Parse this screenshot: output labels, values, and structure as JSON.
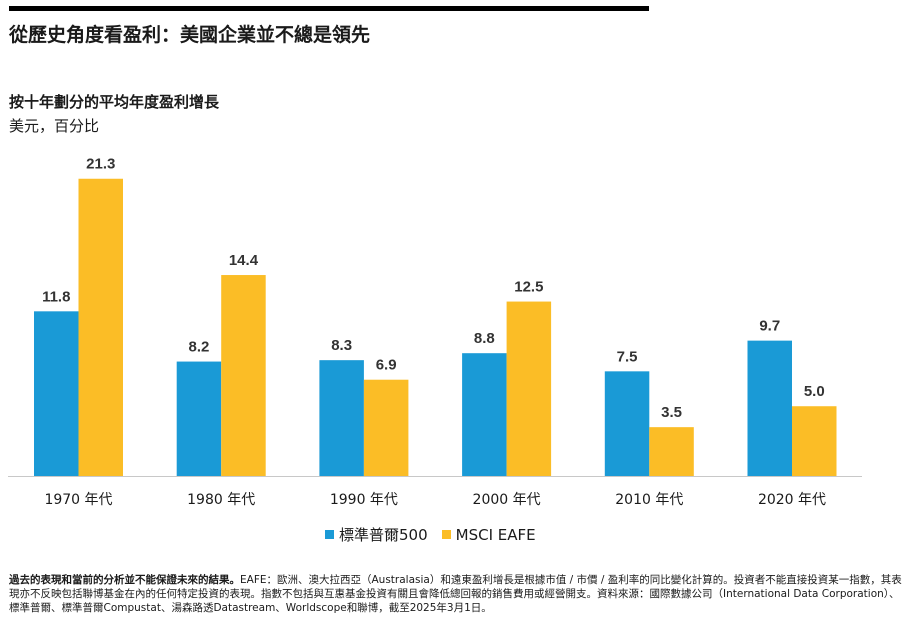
{
  "title": "從歷史角度看盈利：美國企業並不總是領先",
  "chart_data": {
    "type": "bar",
    "title": "按十年劃分的平均年度盈利增長",
    "subtitle": "美元，百分比",
    "categories": [
      "1970 年代",
      "1980 年代",
      "1990 年代",
      "2000 年代",
      "2010 年代",
      "2020 年代"
    ],
    "series": [
      {
        "name": "標準普爾500",
        "values": [
          11.8,
          8.2,
          8.3,
          8.8,
          7.5,
          9.7
        ],
        "color": "#1a9ad6"
      },
      {
        "name": "MSCI EAFE",
        "values": [
          21.3,
          14.4,
          6.9,
          12.5,
          3.5,
          5.0
        ],
        "color": "#fbbd26"
      }
    ],
    "ylim": [
      0,
      22.5
    ],
    "grid": false,
    "legend_position": "bottom"
  },
  "footnote": {
    "bold": "過去的表現和當前的分析並不能保證未來的結果。",
    "text": "EAFE：歐洲、澳大拉西亞（Australasia）和遠東盈利增長是根據市值 / 市價 / 盈利率的同比變化計算的。投資者不能直接投資某一指數，其表現亦不反映包括聯博基金在內的任何特定投資的表現。指數不包括與互惠基金投資有關且會降低總回報的銷售費用或經營開支。資料來源：國際數據公司（International Data Corporation）、標準普爾、標準普爾Compustat、湯森路透Datastream、Worldscope和聯博，截至2025年3月1日。"
  }
}
